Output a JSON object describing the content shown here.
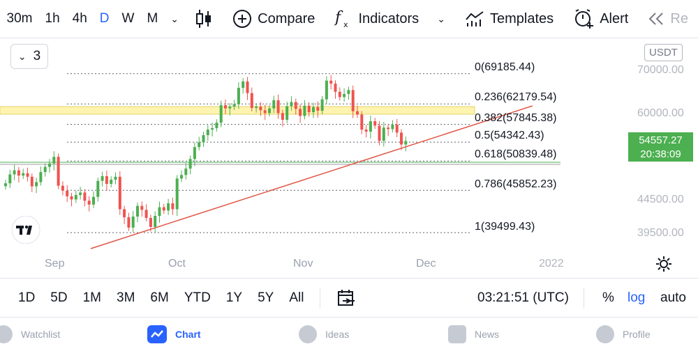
{
  "toolbar": {
    "timeframes": [
      "30m",
      "1h",
      "4h",
      "D",
      "W",
      "M"
    ],
    "active_timeframe": "D",
    "compare_label": "Compare",
    "indicators_label": "Indicators",
    "templates_label": "Templates",
    "alert_label": "Alert",
    "replay_label": "Re"
  },
  "chart": {
    "indicator_count": "3",
    "currency": "USDT",
    "current_price": "54557.27",
    "countdown": "20:38:09",
    "y_labels": [
      "70000.00",
      "60000.00",
      "44500.00",
      "39500.00"
    ],
    "x_labels": [
      "Sep",
      "Oct",
      "Nov",
      "Dec",
      "2022"
    ],
    "fib_levels": [
      {
        "label": "0(69185.44)"
      },
      {
        "label": "0.236(62179.54)"
      },
      {
        "label": "0.382(57845.38)"
      },
      {
        "label": "0.5(54342.43)"
      },
      {
        "label": "0.618(50839.48)"
      },
      {
        "label": "0.786(45852.23)"
      },
      {
        "label": "1(39499.43)"
      }
    ],
    "colors": {
      "up": "#4caf50",
      "down": "#ef5350",
      "trend": "#e05545",
      "zone": "#fff3b0",
      "accent": "#2962ff"
    }
  },
  "chart_data": {
    "type": "candlestick",
    "scale": "log",
    "symbol_unit": "USDT",
    "x_ticks": [
      "Sep",
      "Oct",
      "Nov",
      "Dec",
      "2022"
    ],
    "y_ticks": [
      70000,
      60000,
      44500,
      39500
    ],
    "last_price": 54557.27,
    "fibonacci": [
      {
        "ratio": 0,
        "price": 69185.44
      },
      {
        "ratio": 0.236,
        "price": 62179.54
      },
      {
        "ratio": 0.382,
        "price": 57845.38
      },
      {
        "ratio": 0.5,
        "price": 54342.43
      },
      {
        "ratio": 0.618,
        "price": 50839.48
      },
      {
        "ratio": 0.786,
        "price": 45852.23
      },
      {
        "ratio": 1,
        "price": 39499.43
      }
    ],
    "closes": [
      47000,
      48500,
      49200,
      48300,
      48700,
      48100,
      46500,
      47200,
      48900,
      49800,
      50400,
      51600,
      46600,
      45800,
      44900,
      44400,
      45100,
      45500,
      44200,
      43600,
      44800,
      47400,
      48200,
      46900,
      47600,
      48100,
      42900,
      41700,
      40200,
      41800,
      43400,
      42800,
      41600,
      40300,
      41900,
      43200,
      42700,
      43800,
      42900,
      47800,
      48400,
      49500,
      51200,
      53400,
      54300,
      55700,
      56800,
      57100,
      58200,
      61900,
      61200,
      61600,
      62100,
      65800,
      67300,
      64600,
      61300,
      61600,
      60800,
      60200,
      61200,
      63000,
      60200,
      58800,
      61700,
      62600,
      61100,
      59600,
      61800,
      60400,
      61500,
      60700,
      63200,
      67500,
      66800,
      64900,
      63700,
      64400,
      65300,
      60600,
      59900,
      56800,
      56400,
      58500,
      57600,
      54600,
      57200,
      56900,
      57800,
      56200,
      53900,
      54557
    ]
  },
  "range": {
    "buttons": [
      "1D",
      "5D",
      "1M",
      "3M",
      "6M",
      "YTD",
      "1Y",
      "5Y",
      "All"
    ],
    "time": "03:21:51 (UTC)",
    "percent": "%",
    "log": "log",
    "auto": "auto"
  },
  "nav": {
    "items": [
      "Watchlist",
      "Chart",
      "Ideas",
      "News",
      "Profile"
    ],
    "active": "Chart"
  }
}
